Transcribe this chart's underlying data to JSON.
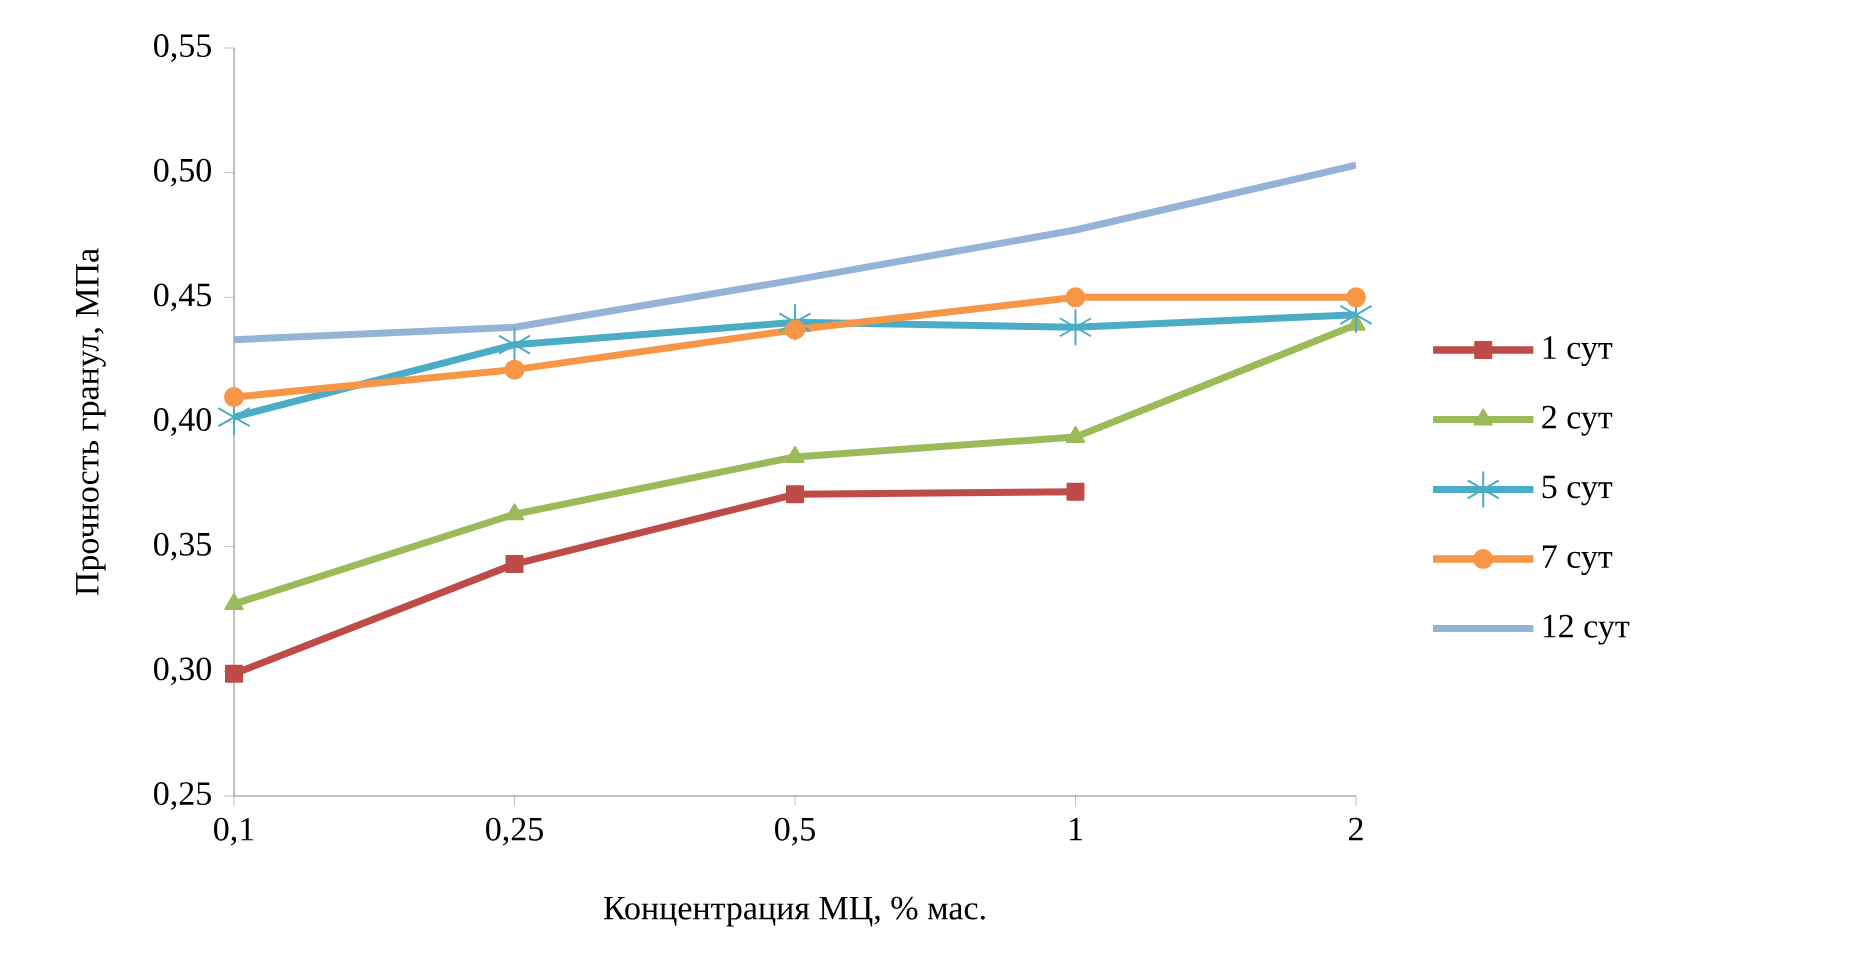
{
  "chart_data": {
    "type": "line",
    "xlabel": "Концентрация МЦ, % мас.",
    "ylabel": "Прочность гранул, МПа",
    "categories": [
      "0,1",
      "0,25",
      "0,5",
      "1",
      "2"
    ],
    "series": [
      {
        "name": "1 сут",
        "color": "#be4b48",
        "marker": "square",
        "values": [
          0.299,
          0.343,
          0.371,
          0.372,
          null
        ]
      },
      {
        "name": "2 сут",
        "color": "#9bbb59",
        "marker": "triangle",
        "values": [
          0.327,
          0.363,
          0.386,
          0.394,
          0.439
        ]
      },
      {
        "name": "5 сут",
        "color": "#4bacc6",
        "marker": "cross",
        "values": [
          0.402,
          0.431,
          0.44,
          0.438,
          0.443
        ]
      },
      {
        "name": "7 сут",
        "color": "#f79646",
        "marker": "circle",
        "values": [
          0.41,
          0.421,
          0.437,
          0.45,
          0.45
        ]
      },
      {
        "name": "12 сут",
        "color": "#95b3d7",
        "marker": "none",
        "values": [
          0.433,
          0.438,
          0.457,
          0.477,
          0.503
        ]
      }
    ],
    "ylim": [
      0.25,
      0.55
    ],
    "yticks": [
      {
        "value": 0.25,
        "label": "0,25"
      },
      {
        "value": 0.3,
        "label": "0,30"
      },
      {
        "value": 0.35,
        "label": "0,35"
      },
      {
        "value": 0.4,
        "label": "0,40"
      },
      {
        "value": 0.45,
        "label": "0,45"
      },
      {
        "value": 0.5,
        "label": "0,50"
      },
      {
        "value": 0.55,
        "label": "0,55"
      }
    ],
    "grid": false,
    "legend": "right",
    "line_style": "solid"
  }
}
